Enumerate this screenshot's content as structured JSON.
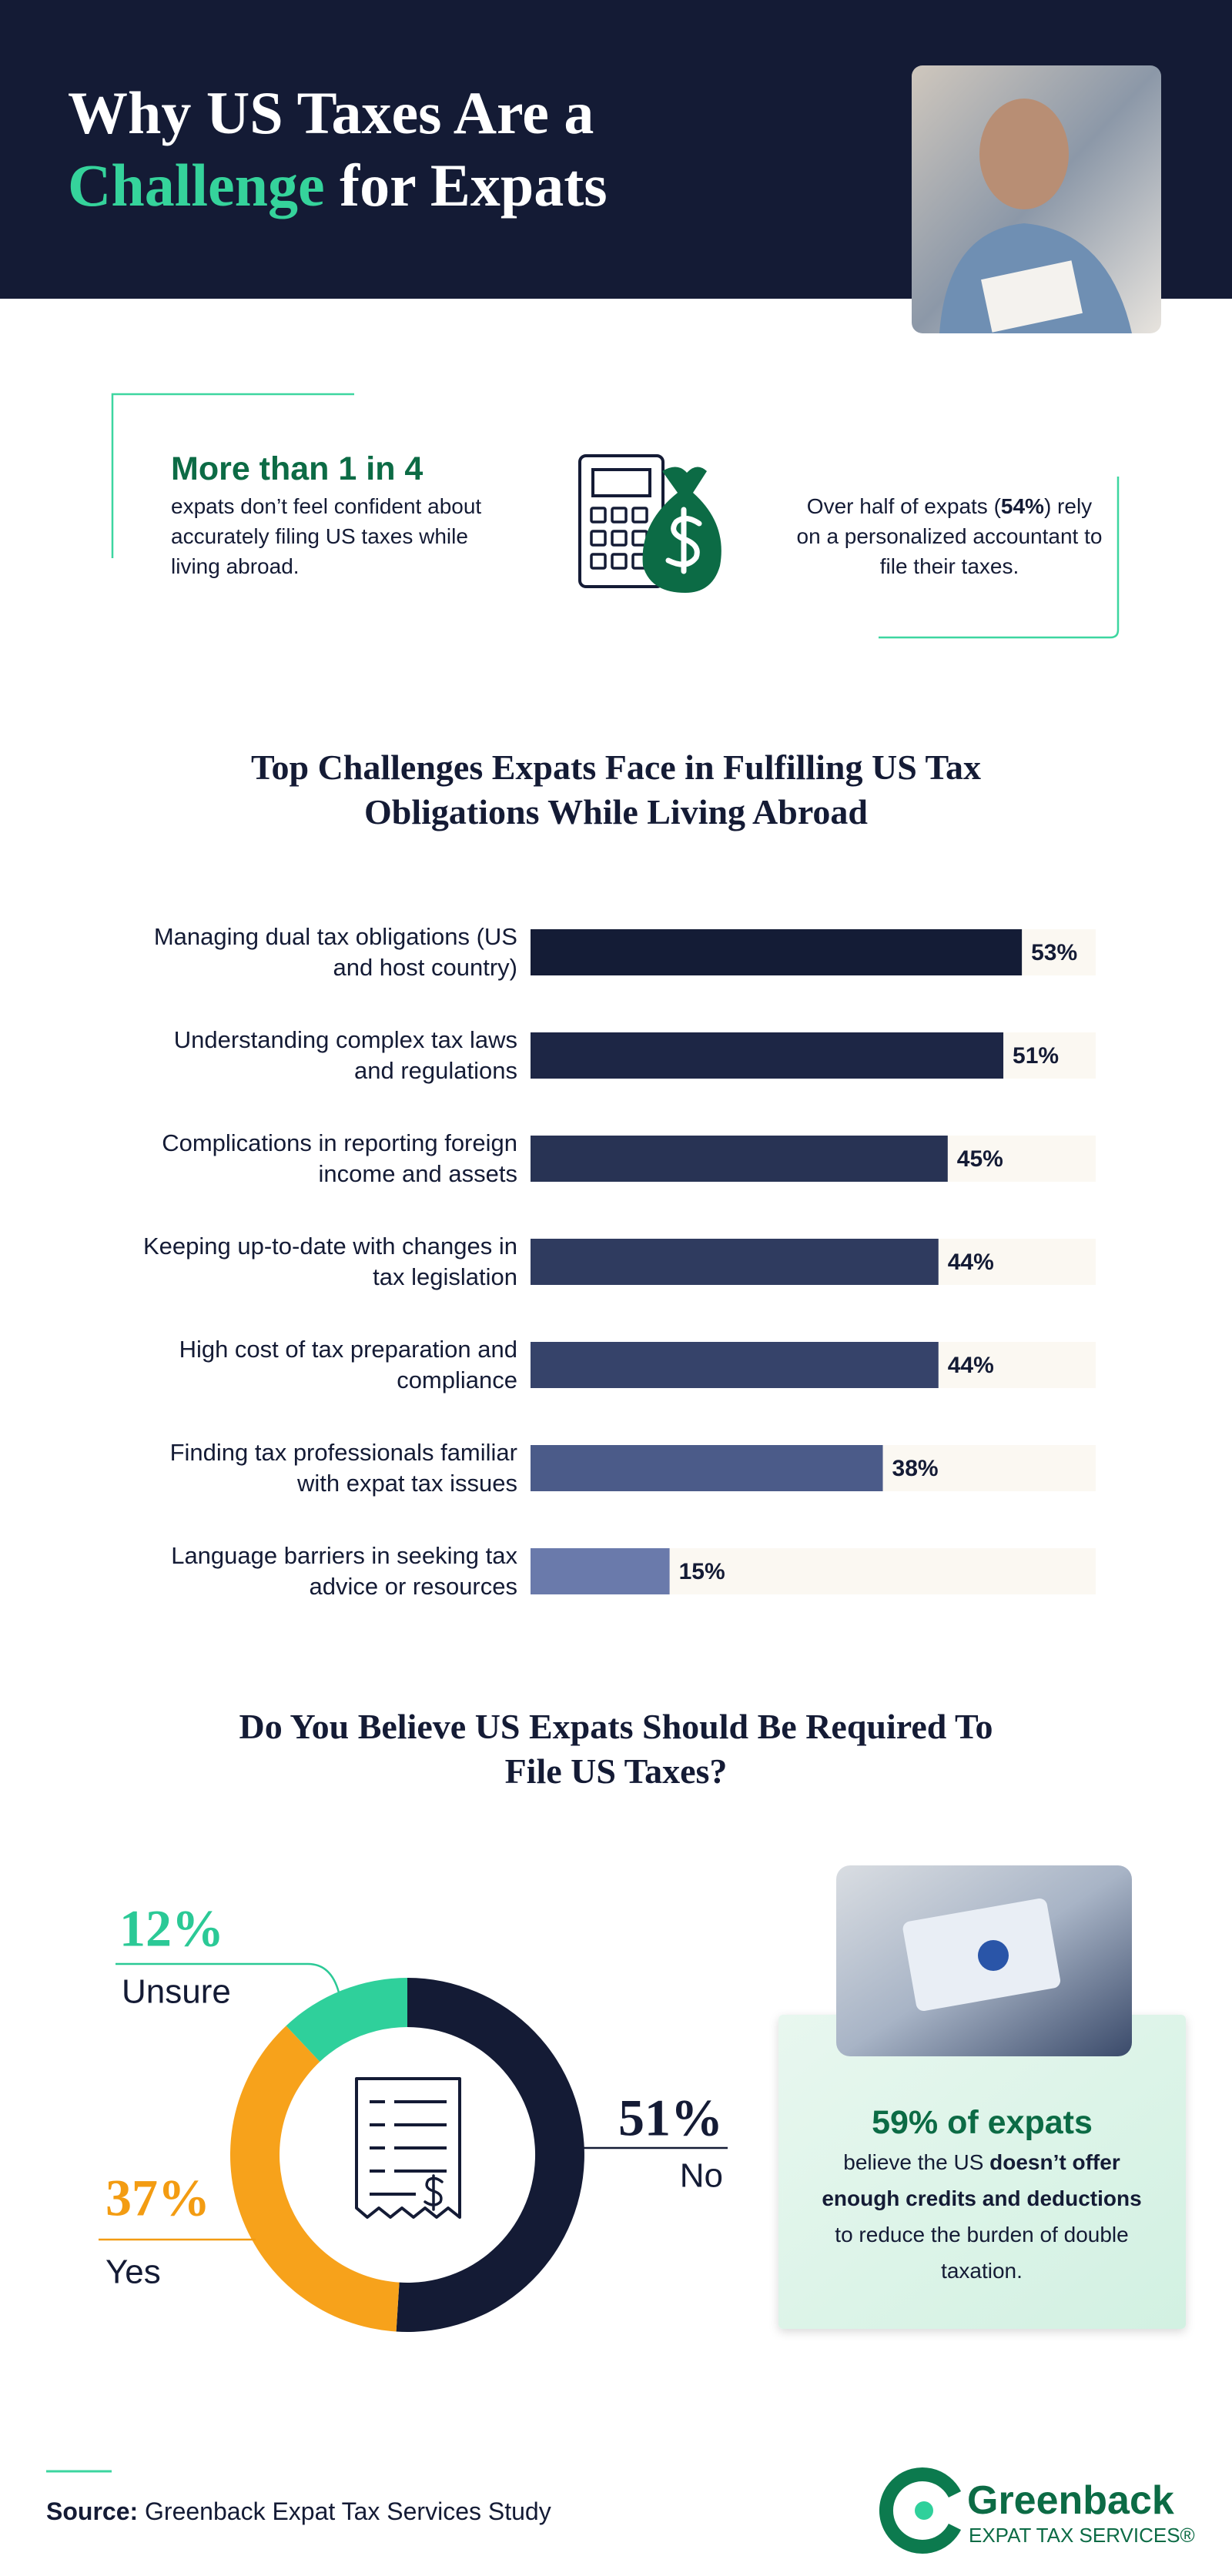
{
  "header": {
    "title_line1": "Why US Taxes Are a",
    "title_highlight": "Challenge",
    "title_rest": "for Expats"
  },
  "stats": {
    "left": {
      "headline": "More than 1 in 4",
      "text": "expats don’t feel confident about accurately filing US taxes while living abroad."
    },
    "right": {
      "text_before": "Over half of expats (",
      "highlight": "54%",
      "text_after": ") rely on a personalized accountant to file their taxes."
    }
  },
  "chart_data": [
    {
      "type": "bar",
      "orientation": "horizontal",
      "title": "Top Challenges Expats Face in Fulfilling US Tax Obligations While Living Abroad",
      "categories": [
        "Managing dual tax obligations (US and host country)",
        "Understanding complex tax laws and regulations",
        "Complications in reporting foreign income and assets",
        "Keeping up-to-date with changes in tax legislation",
        "High cost of tax preparation and compliance",
        "Finding tax professionals familiar with expat tax issues",
        "Language barriers in seeking tax advice or resources"
      ],
      "values": [
        53,
        51,
        45,
        44,
        44,
        38,
        15
      ],
      "value_labels": [
        "53%",
        "51%",
        "45%",
        "44%",
        "44%",
        "38%",
        "15%"
      ],
      "colors": [
        "#141c36",
        "#1d2645",
        "#283354",
        "#2f3b5f",
        "#36436a",
        "#4b5b89",
        "#6a7aab"
      ],
      "track_color": "#fbf8f2"
    },
    {
      "type": "donut",
      "title": "Do You Believe US Expats Should Be Required To File US Taxes?",
      "categories": [
        "No",
        "Yes",
        "Unsure"
      ],
      "values": [
        51,
        37,
        12
      ],
      "value_labels": [
        "51%",
        "37%",
        "12%"
      ],
      "colors": [
        "#141b35",
        "#f7a21b",
        "#2fd09b"
      ],
      "label_colors": [
        "#141b35",
        "#f39c12",
        "#2bc996"
      ]
    }
  ],
  "card": {
    "headline": "59% of expats",
    "text_before": "believe the US ",
    "highlight": "doesn’t offer enough credits and deductions",
    "text_after": " to reduce the burden of double taxation."
  },
  "source": {
    "label": "Source:",
    "text": "Greenback Expat Tax Services Study"
  },
  "logo": {
    "name": "Greenback",
    "tagline": "EXPAT TAX SERVICES®"
  }
}
